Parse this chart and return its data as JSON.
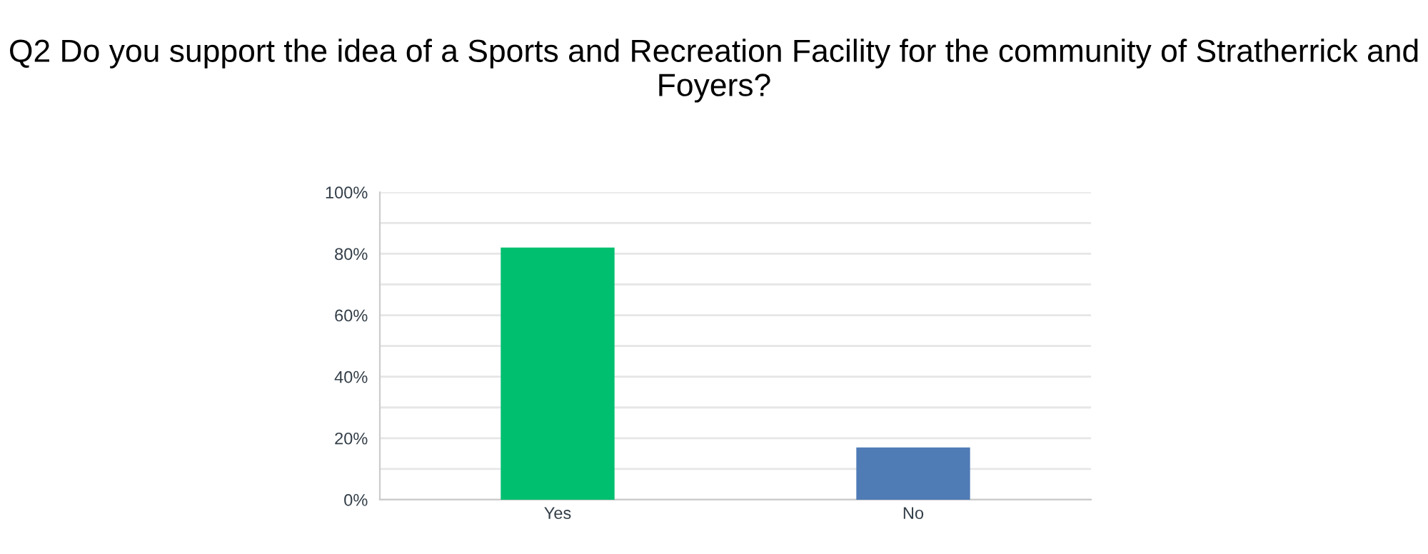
{
  "chart_data": {
    "type": "bar",
    "title": "Q2 Do you support the idea of a Sports and Recreation Facility for the community of Stratherrick and Foyers?",
    "categories": [
      "Yes",
      "No"
    ],
    "values": [
      82,
      17
    ],
    "colors": [
      "#00bf6f",
      "#507cb6"
    ],
    "ylim": [
      0,
      100
    ],
    "yticks": [
      {
        "value": 0,
        "label": "0%"
      },
      {
        "value": 10,
        "label": null
      },
      {
        "value": 20,
        "label": "20%"
      },
      {
        "value": 30,
        "label": null
      },
      {
        "value": 40,
        "label": "40%"
      },
      {
        "value": 50,
        "label": null
      },
      {
        "value": 60,
        "label": "60%"
      },
      {
        "value": 70,
        "label": null
      },
      {
        "value": 80,
        "label": "80%"
      },
      {
        "value": 90,
        "label": null
      },
      {
        "value": 100,
        "label": "100%"
      }
    ],
    "grid": "y",
    "legend": false
  }
}
